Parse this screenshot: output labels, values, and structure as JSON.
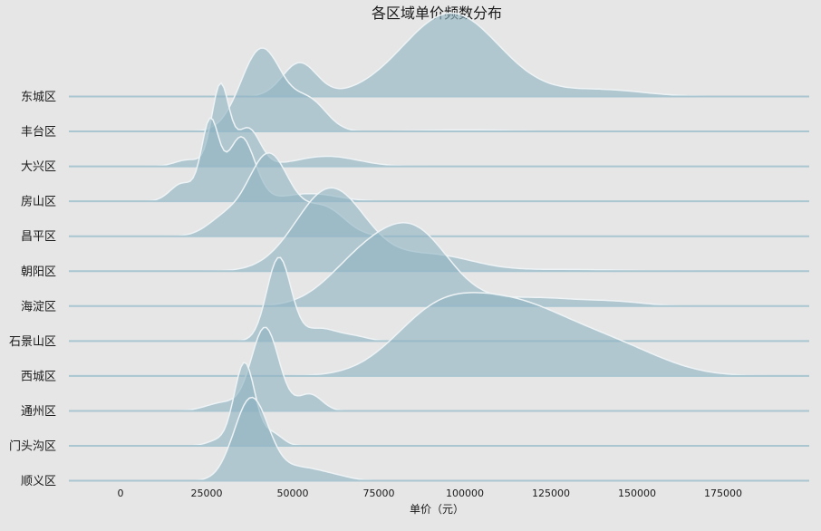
{
  "chart_data": {
    "type": "ridgeline",
    "title": "各区域单价频数分布",
    "xlabel": "单价（元）",
    "ylabel": "",
    "xlim": [
      -15000,
      198000
    ],
    "x_ticks": [
      0,
      25000,
      50000,
      75000,
      100000,
      125000,
      150000,
      175000
    ],
    "x_tick_labels": [
      "0",
      "25000",
      "50000",
      "75000",
      "100000",
      "125000",
      "150000",
      "175000"
    ],
    "grid": false,
    "colors": {
      "background": "#e6e6e6",
      "fill": "#8fb3c2",
      "fill_dark": "#7ea8b9",
      "baseline": "#a9c6d1",
      "outline": "#eef3f5"
    },
    "series": [
      {
        "name": "东城区",
        "peaks": [
          [
            96000,
            14000,
            1.0
          ],
          [
            52000,
            5000,
            0.4
          ],
          [
            140000,
            12000,
            0.08
          ]
        ]
      },
      {
        "name": "丰台区",
        "peaks": [
          [
            41000,
            6000,
            1.0
          ],
          [
            55000,
            5000,
            0.35
          ],
          [
            100000,
            12000,
            0.02
          ]
        ]
      },
      {
        "name": "大兴区",
        "peaks": [
          [
            29000,
            2500,
            0.95
          ],
          [
            37000,
            3500,
            0.45
          ],
          [
            60000,
            9000,
            0.12
          ],
          [
            20000,
            4000,
            0.08
          ]
        ]
      },
      {
        "name": "房山区",
        "peaks": [
          [
            26000,
            2500,
            0.3
          ],
          [
            18000,
            3500,
            0.07
          ],
          [
            35000,
            4000,
            0.25
          ],
          [
            55000,
            8000,
            0.03
          ]
        ]
      },
      {
        "name": "昌平区",
        "peaks": [
          [
            43000,
            6000,
            1.0
          ],
          [
            59000,
            6000,
            0.35
          ],
          [
            30000,
            5000,
            0.2
          ]
        ]
      },
      {
        "name": "朝阳区",
        "peaks": [
          [
            61000,
            10000,
            1.0
          ],
          [
            90000,
            12000,
            0.2
          ],
          [
            130000,
            15000,
            0.02
          ]
        ]
      },
      {
        "name": "海淀区",
        "peaks": [
          [
            86000,
            10000,
            0.95
          ],
          [
            70000,
            10000,
            0.6
          ],
          [
            120000,
            15000,
            0.12
          ],
          [
            145000,
            8000,
            0.04
          ]
        ]
      },
      {
        "name": "石景山区",
        "peaks": [
          [
            46000,
            3500,
            1.0
          ],
          [
            58000,
            5000,
            0.15
          ],
          [
            68000,
            4000,
            0.05
          ]
        ]
      },
      {
        "name": "西城区",
        "peaks": [
          [
            113000,
            18000,
            1.0
          ],
          [
            90000,
            12000,
            0.55
          ],
          [
            145000,
            14000,
            0.3
          ]
        ]
      },
      {
        "name": "通州区",
        "peaks": [
          [
            42000,
            4000,
            1.0
          ],
          [
            55000,
            3500,
            0.2
          ],
          [
            30000,
            5000,
            0.1
          ]
        ]
      },
      {
        "name": "门头沟区",
        "peaks": [
          [
            36000,
            3000,
            1.0
          ],
          [
            44000,
            3000,
            0.15
          ],
          [
            28000,
            3000,
            0.06
          ]
        ]
      },
      {
        "name": "顺义区",
        "peaks": [
          [
            38000,
            5000,
            1.0
          ],
          [
            52000,
            6000,
            0.15
          ],
          [
            62000,
            5000,
            0.05
          ]
        ]
      }
    ]
  }
}
